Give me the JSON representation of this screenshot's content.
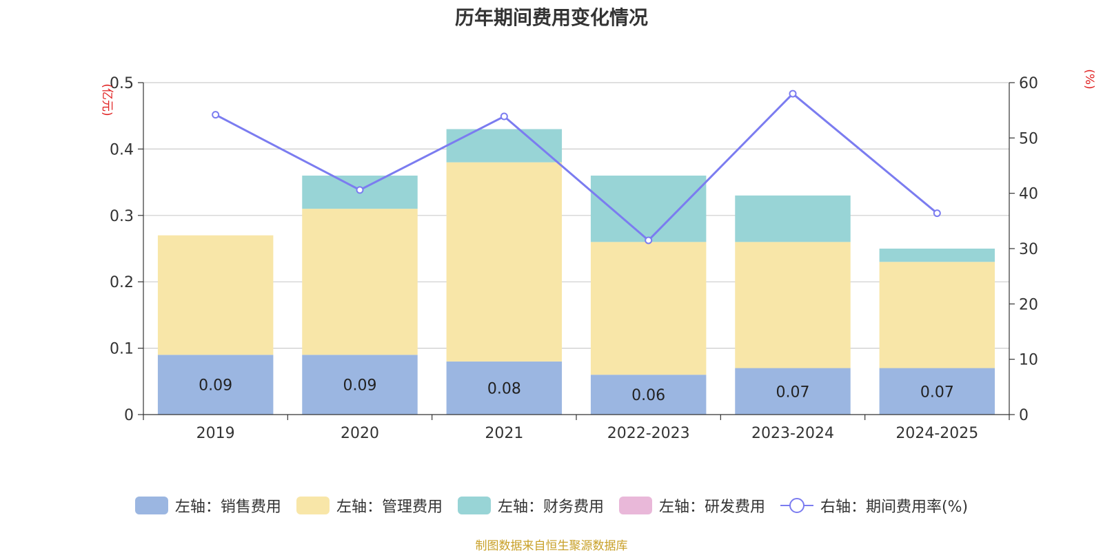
{
  "chart_data": {
    "type": "bar",
    "title": "历年期间费用变化情况",
    "categories": [
      "2019",
      "2020",
      "2021",
      "2022-2023",
      "2023-2024",
      "2024-2025"
    ],
    "y_left": {
      "label": "(亿元)",
      "ylim": [
        0,
        0.5
      ],
      "ticks": [
        "0",
        "0.1",
        "0.2",
        "0.3",
        "0.4",
        "0.5"
      ]
    },
    "y_right": {
      "label": "(%)",
      "ylim": [
        0,
        60
      ],
      "ticks": [
        "0",
        "10",
        "20",
        "30",
        "40",
        "50",
        "60"
      ]
    },
    "series": [
      {
        "name": "左轴：销售费用",
        "kind": "bar",
        "axis": "left",
        "color": "#9bb6e1",
        "values": [
          0.09,
          0.09,
          0.08,
          0.06,
          0.07,
          0.07
        ],
        "labels": [
          "0.09",
          "0.09",
          "0.08",
          "0.06",
          "0.07",
          "0.07"
        ]
      },
      {
        "name": "左轴：管理费用",
        "kind": "bar",
        "axis": "left",
        "color": "#f8e6a8",
        "values": [
          0.18,
          0.22,
          0.3,
          0.2,
          0.19,
          0.16
        ]
      },
      {
        "name": "左轴：财务费用",
        "kind": "bar",
        "axis": "left",
        "color": "#98d4d6",
        "values": [
          0.0,
          0.05,
          0.05,
          0.1,
          0.07,
          0.02
        ]
      },
      {
        "name": "左轴：研发费用",
        "kind": "bar",
        "axis": "left",
        "color": "#e9b8d9",
        "values": [
          0,
          0,
          0,
          0,
          0,
          0
        ]
      },
      {
        "name": "右轴：期间费用率(%)",
        "kind": "line",
        "axis": "right",
        "color": "#7b7cf0",
        "values": [
          54.2,
          40.6,
          53.9,
          31.5,
          58.0,
          36.4
        ]
      }
    ],
    "grid": true,
    "legend": "bottom"
  },
  "source_note": "制图数据来自恒生聚源数据库"
}
